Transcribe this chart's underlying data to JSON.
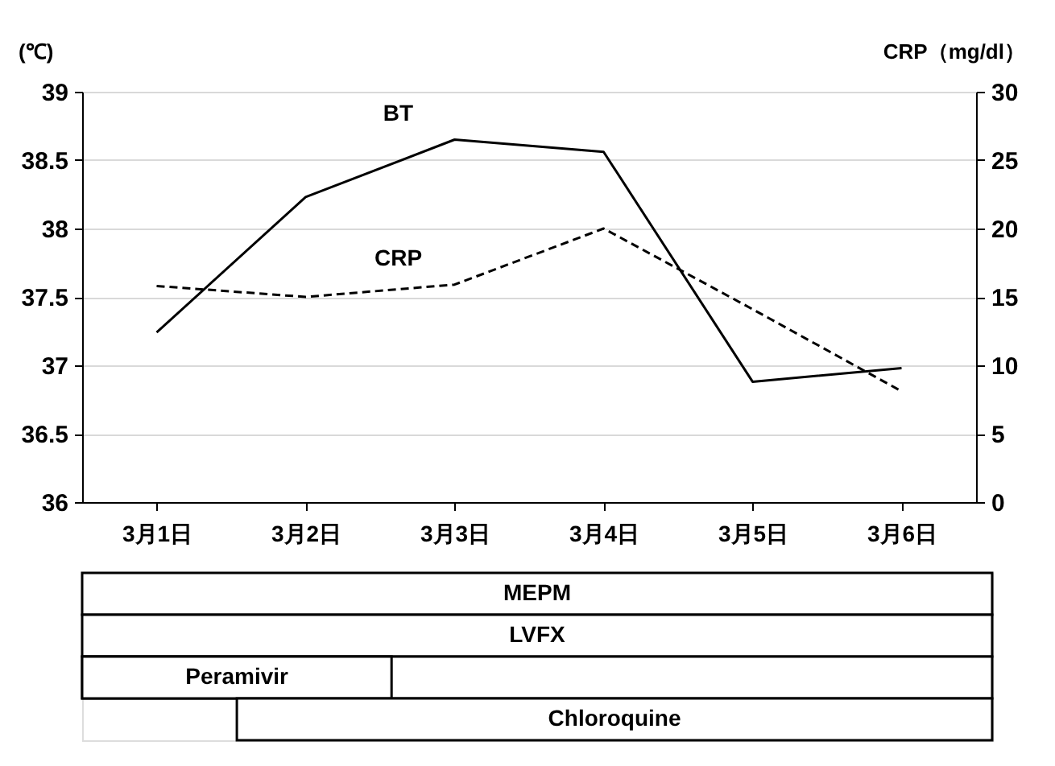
{
  "chart_data": {
    "type": "line",
    "ylabel": "(℃)",
    "y2label": "CRP（mg/dl）",
    "categories": [
      "3月1日",
      "3月2日",
      "3月3日",
      "3月4日",
      "3月5日",
      "3月6日"
    ],
    "series": [
      {
        "name": "BT",
        "color": "#000000",
        "line_style": "solid",
        "values": [
          37.24,
          38.23,
          38.65,
          38.56,
          36.88,
          36.98
        ]
      },
      {
        "name": "CRP",
        "color": "#000000",
        "line_style": "dashed",
        "axis": "y2",
        "values": [
          15.8,
          15.0,
          15.9,
          20.0,
          14.1,
          8.1
        ]
      }
    ],
    "ylim": [
      36,
      39
    ],
    "yticks": [
      36,
      36.5,
      37,
      37.5,
      38,
      38.5,
      39
    ],
    "y2lim": [
      0,
      30
    ],
    "y2ticks": [
      0,
      5,
      10,
      15,
      20,
      25,
      30
    ],
    "grid": "y",
    "legend": false,
    "marker": "none",
    "annotations": [
      "MEPM",
      "LVFX",
      "Peramivir",
      "Chloroquine"
    ]
  }
}
